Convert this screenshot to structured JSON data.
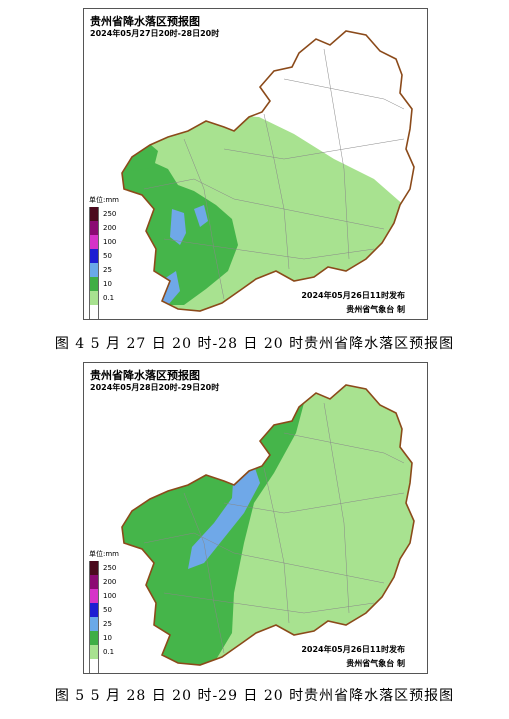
{
  "maps": [
    {
      "title": "贵州省降水落区预报图",
      "period": "2024年05月27日20时-28日20时",
      "issue_time": "2024年05月26日11时发布",
      "issuer": "贵州省气象台 制",
      "caption": "图 4   5 月 27 日 20 时-28 日 20 时贵州省降水落区预报图",
      "colors": {
        "clear": "#ffffff",
        "light": "#a8e290",
        "moderate": "#45b54a",
        "heavy": "#6fa8e8"
      }
    },
    {
      "title": "贵州省降水落区预报图",
      "period": "2024年05月28日20时-29日20时",
      "issue_time": "2024年05月26日11时发布",
      "issuer": "贵州省气象台 制",
      "caption": "图 5   5 月 28 日 20 时-29 日 20 时贵州省降水落区预报图",
      "colors": {
        "clear": "#ffffff",
        "light": "#a8e290",
        "moderate": "#45b54a",
        "heavy": "#6fa8e8"
      }
    }
  ],
  "legend": {
    "unit": "单位:mm",
    "items": [
      {
        "label": "250",
        "color": "#4b0a1e"
      },
      {
        "label": "200",
        "color": "#8b0a73"
      },
      {
        "label": "100",
        "color": "#d633c8"
      },
      {
        "label": "50",
        "color": "#1e1ed2"
      },
      {
        "label": "25",
        "color": "#6aa9e8"
      },
      {
        "label": "10",
        "color": "#3fae45"
      },
      {
        "label": "0.1",
        "color": "#a8e290"
      },
      {
        "label": "",
        "color": "#ffffff"
      }
    ]
  }
}
